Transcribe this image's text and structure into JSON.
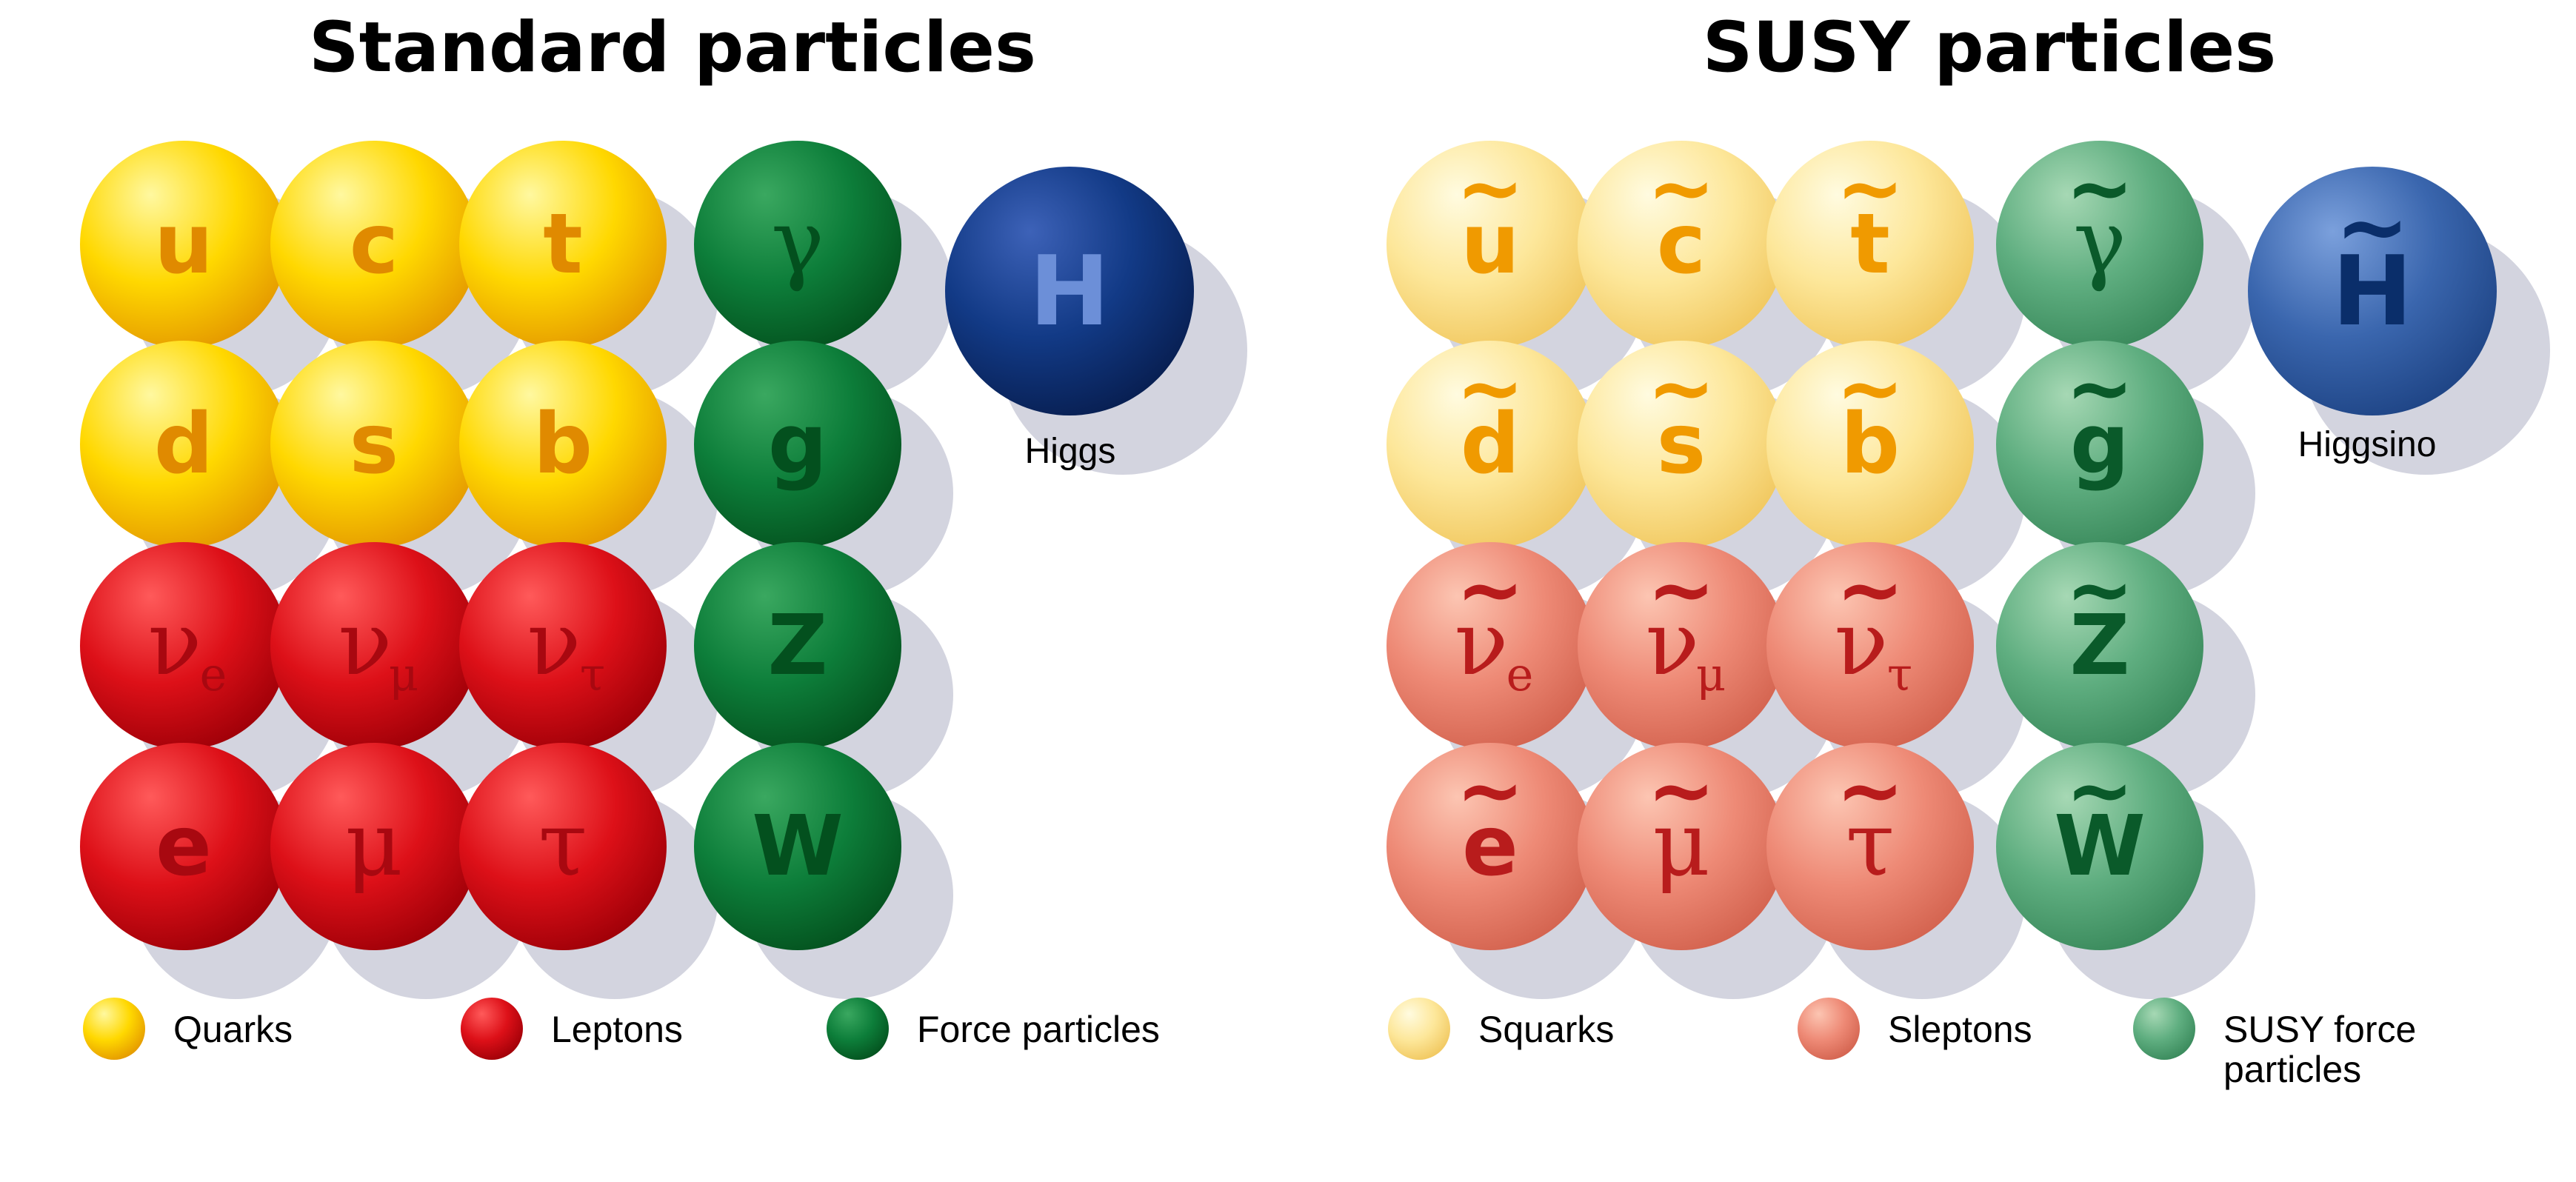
{
  "panels": [
    {
      "title": "Standard particles",
      "variant": "sm",
      "higgs": {
        "symbol": "H",
        "label": "Higgs"
      },
      "legend": [
        {
          "key": "quark",
          "label": "Quarks"
        },
        {
          "key": "lepton",
          "label": "Leptons"
        },
        {
          "key": "force",
          "label": "Force particles"
        }
      ]
    },
    {
      "title": "SUSY particles",
      "variant": "susy",
      "higgs": {
        "symbol": "H",
        "label": "Higgsino"
      },
      "legend": [
        {
          "key": "quark",
          "label": "Squarks"
        },
        {
          "key": "lepton",
          "label": "Sleptons"
        },
        {
          "key": "force",
          "label": "SUSY force particles"
        }
      ]
    }
  ],
  "particles": [
    [
      {
        "symbol": "u",
        "style": "sans",
        "kind": "quark"
      },
      {
        "symbol": "c",
        "style": "sans",
        "kind": "quark"
      },
      {
        "symbol": "t",
        "style": "sans",
        "kind": "quark"
      },
      {
        "symbol": "γ",
        "style": "serif",
        "kind": "force"
      }
    ],
    [
      {
        "symbol": "d",
        "style": "sans",
        "kind": "quark"
      },
      {
        "symbol": "s",
        "style": "sans",
        "kind": "quark"
      },
      {
        "symbol": "b",
        "style": "sans",
        "kind": "quark"
      },
      {
        "symbol": "g",
        "style": "sans",
        "kind": "force"
      }
    ],
    [
      {
        "symbol": "ν",
        "sub": "e",
        "style": "serif",
        "kind": "lepton"
      },
      {
        "symbol": "ν",
        "sub": "μ",
        "style": "serif",
        "kind": "lepton"
      },
      {
        "symbol": "ν",
        "sub": "τ",
        "style": "serif",
        "kind": "lepton"
      },
      {
        "symbol": "Z",
        "style": "sans",
        "kind": "force"
      }
    ],
    [
      {
        "symbol": "e",
        "style": "sans",
        "kind": "lepton"
      },
      {
        "symbol": "μ",
        "style": "serif",
        "kind": "lepton"
      },
      {
        "symbol": "τ",
        "style": "serif",
        "kind": "lepton"
      },
      {
        "symbol": "W",
        "style": "sans",
        "kind": "force"
      }
    ]
  ],
  "tilde_mark": "~",
  "colors": {
    "sm": {
      "quark": {
        "hi": "#fff8a0",
        "mid": "#ffd800",
        "lo": "#e59a00",
        "text": "#e08a00"
      },
      "lepton": {
        "hi": "#ff5a5a",
        "mid": "#dd1018",
        "lo": "#a00008",
        "text": "#a80810"
      },
      "force": {
        "hi": "#3aa860",
        "mid": "#0d7e3a",
        "lo": "#04531f",
        "text": "#03501e"
      },
      "higgs": {
        "hi": "#3d62b8",
        "mid": "#123a86",
        "lo": "#081f52",
        "text": "#6c8fd8"
      }
    },
    "susy": {
      "quark": {
        "hi": "#fffbe0",
        "mid": "#fde79a",
        "lo": "#f1c860",
        "text": "#f09a00"
      },
      "lepton": {
        "hi": "#fcc5b2",
        "mid": "#ee8a76",
        "lo": "#d46450",
        "text": "#b81c1c"
      },
      "force": {
        "hi": "#a6d8b4",
        "mid": "#5fae80",
        "lo": "#3a8a5c",
        "text": "#0a5a2a"
      },
      "higgs": {
        "hi": "#7ba0dc",
        "mid": "#3a66ae",
        "lo": "#1f4586",
        "text": "#0a2e6a"
      }
    },
    "shadow": "#d3d4df"
  }
}
